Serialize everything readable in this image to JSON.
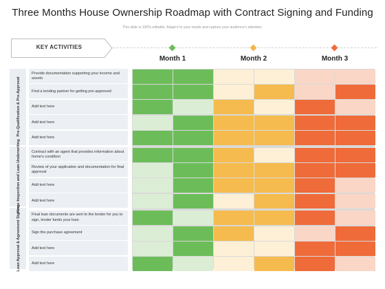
{
  "title": "Three Months House Ownership Roadmap with Contract Signing and Funding",
  "subtitle": "This slide is 100% editable. Adapt it to your needs and capture your audience's attention.",
  "key_label": "KEY ACTIVITIES",
  "months": [
    {
      "label": "Month 1",
      "color": "#6cbd5a"
    },
    {
      "label": "Month 2",
      "color": "#f1b64a"
    },
    {
      "label": "Month 3",
      "color": "#ef6b3a"
    }
  ],
  "palette": {
    "green": [
      "#dcedd5",
      "#6cbd5a"
    ],
    "amber": [
      "#fdf0d6",
      "#f5bb4e"
    ],
    "orange": [
      "#fad6c6",
      "#ef6b3a"
    ]
  },
  "sections": [
    {
      "label": "Pre-Qualification & Pre-Approval",
      "rows": [
        0,
        4
      ]
    },
    {
      "label": "Home Inspection and Loan Underwriting",
      "rows": [
        5,
        8
      ]
    },
    {
      "label": "Loan Approval & Agreement Signing",
      "rows": [
        9,
        12
      ]
    }
  ],
  "activities": [
    {
      "text": "Provide documentation supporting your income and assets",
      "levels": [
        1,
        1,
        0,
        0,
        0,
        0
      ]
    },
    {
      "text": "Find a lending partner for getting pre-approved",
      "levels": [
        1,
        1,
        0,
        1,
        0,
        1
      ]
    },
    {
      "text": "Add text here",
      "levels": [
        1,
        0,
        1,
        0,
        1,
        0
      ]
    },
    {
      "text": "Add text here",
      "levels": [
        0,
        1,
        1,
        1,
        1,
        1
      ]
    },
    {
      "text": "Add text here",
      "levels": [
        1,
        1,
        1,
        1,
        1,
        1
      ]
    },
    {
      "text": "Contract with an agent that provides information about home's condition",
      "levels": [
        1,
        1,
        1,
        0,
        1,
        1
      ]
    },
    {
      "text": "Review of your application and documentation for final approval",
      "levels": [
        0,
        1,
        1,
        1,
        1,
        1
      ]
    },
    {
      "text": "Add text here",
      "levels": [
        0,
        1,
        1,
        1,
        1,
        0
      ]
    },
    {
      "text": "Add text here",
      "levels": [
        0,
        1,
        0,
        1,
        1,
        0
      ]
    },
    {
      "text": "Final loan documents are sent to the lender for you to sign, lender funds your loan",
      "levels": [
        1,
        0,
        1,
        1,
        1,
        0
      ]
    },
    {
      "text": "Sign the purchase agreement",
      "levels": [
        0,
        1,
        1,
        0,
        0,
        1
      ]
    },
    {
      "text": "Add text here",
      "levels": [
        0,
        1,
        0,
        0,
        1,
        1
      ]
    },
    {
      "text": "Add text here",
      "levels": [
        1,
        0,
        0,
        1,
        1,
        0
      ]
    }
  ]
}
